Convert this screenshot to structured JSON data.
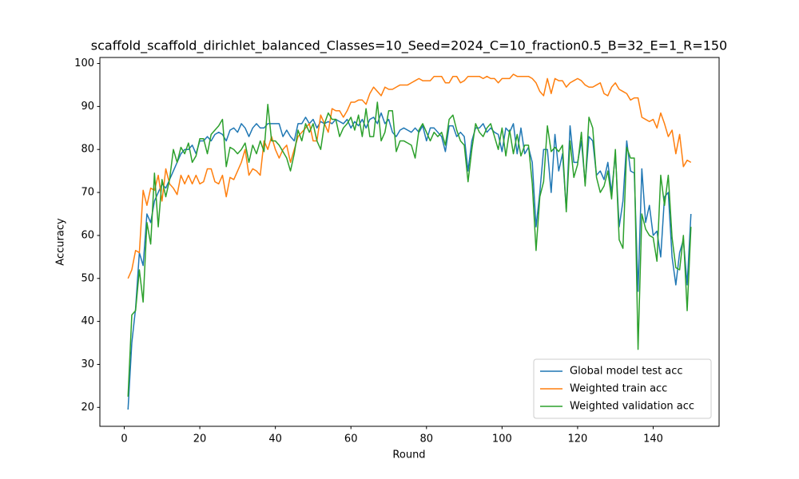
{
  "chart_data": {
    "type": "line",
    "title": "scaffold_scaffold_dirichlet_balanced_Classes=10_Seed=2024_C=10_fraction0.5_B=32_E=1_R=150",
    "x_label": "Round",
    "y_label": "Accuracy",
    "x": [
      1,
      2,
      3,
      4,
      5,
      6,
      7,
      8,
      9,
      10,
      11,
      12,
      13,
      14,
      15,
      16,
      17,
      18,
      19,
      20,
      21,
      22,
      23,
      24,
      25,
      26,
      27,
      28,
      29,
      30,
      31,
      32,
      33,
      34,
      35,
      36,
      37,
      38,
      39,
      40,
      41,
      42,
      43,
      44,
      45,
      46,
      47,
      48,
      49,
      50,
      51,
      52,
      53,
      54,
      55,
      56,
      57,
      58,
      59,
      60,
      61,
      62,
      63,
      64,
      65,
      66,
      67,
      68,
      69,
      70,
      71,
      72,
      73,
      74,
      75,
      76,
      77,
      78,
      79,
      80,
      81,
      82,
      83,
      84,
      85,
      86,
      87,
      88,
      89,
      90,
      91,
      92,
      93,
      94,
      95,
      96,
      97,
      98,
      99,
      100,
      101,
      102,
      103,
      104,
      105,
      106,
      107,
      108,
      109,
      110,
      111,
      112,
      113,
      114,
      115,
      116,
      117,
      118,
      119,
      120,
      121,
      122,
      123,
      124,
      125,
      126,
      127,
      128,
      129,
      130,
      131,
      132,
      133,
      134,
      135,
      136,
      137,
      138,
      139,
      140,
      141,
      142,
      143,
      144,
      145,
      146,
      147,
      148,
      149,
      150
    ],
    "series": [
      {
        "name": "Global model test acc",
        "color": "#1f77b4",
        "values": [
          19.5,
          35,
          43,
          56,
          53,
          65,
          63,
          68,
          70,
          72,
          71,
          73,
          75,
          77,
          79,
          80,
          80,
          81,
          79,
          82,
          82,
          83,
          82,
          83.5,
          84,
          83.5,
          82,
          84.5,
          85,
          84,
          86,
          85,
          83,
          85,
          86,
          85,
          85,
          86,
          86,
          86,
          86,
          83,
          84.5,
          83,
          82,
          86,
          86,
          87.5,
          86,
          87,
          85,
          86.5,
          86,
          86.5,
          86,
          87,
          86.5,
          86,
          87,
          85,
          86.5,
          85.5,
          87,
          85,
          87,
          87.5,
          86,
          88.5,
          86,
          87,
          84,
          83,
          84.5,
          85,
          84.5,
          84,
          85,
          84,
          85.5,
          82,
          85,
          85,
          84,
          83,
          79.5,
          85.5,
          85.5,
          83,
          84,
          83,
          75,
          82,
          85,
          85,
          86,
          84,
          85,
          84,
          83.5,
          79.5,
          85,
          84,
          86,
          79,
          85,
          79,
          80.5,
          77,
          62,
          70,
          80,
          80,
          70,
          83.5,
          75,
          79,
          66,
          85.5,
          77,
          77,
          82,
          72,
          83,
          82,
          74,
          75,
          73,
          77,
          70,
          79,
          62,
          68,
          82,
          75,
          74.5,
          47,
          75.5,
          63,
          67,
          60,
          61,
          55,
          69,
          70,
          55,
          48.5,
          56,
          59,
          48.5,
          65
        ]
      },
      {
        "name": "Weighted train acc",
        "color": "#ff7f0e",
        "values": [
          50,
          52,
          56.5,
          56,
          70.5,
          67,
          71,
          70.5,
          74,
          68,
          75.5,
          72,
          71,
          69.5,
          74,
          72,
          74,
          72,
          74,
          72,
          72.5,
          75.5,
          75.5,
          72.5,
          72,
          74,
          69,
          73.5,
          73,
          75,
          77,
          80,
          74,
          75.5,
          75,
          74,
          82,
          80,
          83,
          80,
          78,
          80,
          81,
          77,
          80,
          83,
          84,
          85,
          86,
          82,
          82,
          88,
          86,
          84,
          89.5,
          89,
          89,
          87.5,
          89,
          91,
          91,
          91.5,
          91.5,
          90.5,
          93,
          94.5,
          93.5,
          92.5,
          94.5,
          94,
          94,
          94.5,
          95,
          95,
          95,
          95.5,
          96,
          96.5,
          96,
          96,
          96,
          97,
          97,
          97,
          95.5,
          95.5,
          97,
          97,
          95.5,
          96,
          97,
          97,
          97,
          97,
          96.5,
          97,
          96.5,
          96.5,
          95.5,
          96.5,
          96.5,
          96.5,
          97.5,
          97,
          97,
          97,
          97,
          96.5,
          95.5,
          93.5,
          92.5,
          96.5,
          93,
          96.5,
          96,
          96,
          94.5,
          95.5,
          96,
          96.5,
          96,
          95,
          94.5,
          94.5,
          95,
          95.5,
          93,
          92.5,
          94.5,
          95.5,
          94,
          93.5,
          93,
          91.5,
          92,
          92,
          87.5,
          87,
          86.5,
          87,
          85,
          88.5,
          86,
          83,
          84.5,
          79,
          83.5,
          76,
          77.5,
          77
        ]
      },
      {
        "name": "Weighted validation acc",
        "color": "#2ca02c",
        "values": [
          22.5,
          41.5,
          42.5,
          52,
          44.5,
          63,
          58,
          74.5,
          62,
          73,
          69,
          73,
          80,
          77,
          80.5,
          79,
          81.5,
          77,
          78.5,
          82.5,
          82.5,
          79,
          83.5,
          84.5,
          85.5,
          87,
          76,
          80.5,
          80,
          79,
          80,
          81.5,
          77,
          81,
          79,
          82,
          79.5,
          90.5,
          82,
          82,
          81,
          79.5,
          78,
          75,
          79,
          84.5,
          82,
          86,
          84,
          86,
          82,
          80,
          86,
          88.5,
          87,
          87,
          83,
          85,
          86,
          87.5,
          84.5,
          88,
          83,
          89.5,
          83,
          83,
          91,
          82,
          84,
          89,
          89,
          79.5,
          82,
          82,
          81.5,
          81,
          78,
          84.5,
          86,
          84,
          82,
          84,
          83,
          84,
          81,
          87,
          88,
          84.5,
          82,
          81,
          72.5,
          80,
          86,
          84,
          83,
          85,
          86,
          83,
          80,
          85,
          78.5,
          84.5,
          79,
          83.5,
          78.5,
          81,
          81,
          72,
          56.5,
          69,
          72.5,
          85.5,
          79.5,
          80.5,
          79.5,
          81,
          65.5,
          82,
          73.5,
          76.5,
          84,
          71.5,
          87.5,
          85,
          73.5,
          70,
          71.5,
          75,
          68.5,
          80,
          59,
          57,
          80.5,
          78,
          78,
          33.5,
          65,
          61.5,
          60,
          59.5,
          54,
          74,
          67,
          74,
          59.5,
          52.5,
          52,
          60,
          42.5,
          62
        ]
      }
    ],
    "xlim": [
      -6.45,
      157.45
    ],
    "xticks": [
      0,
      20,
      40,
      60,
      80,
      100,
      120,
      140
    ],
    "ylim": [
      15.6,
      101.4
    ],
    "yticks": [
      20,
      30,
      40,
      50,
      60,
      70,
      80,
      90,
      100
    ],
    "grid": false,
    "legend": "lower right"
  }
}
